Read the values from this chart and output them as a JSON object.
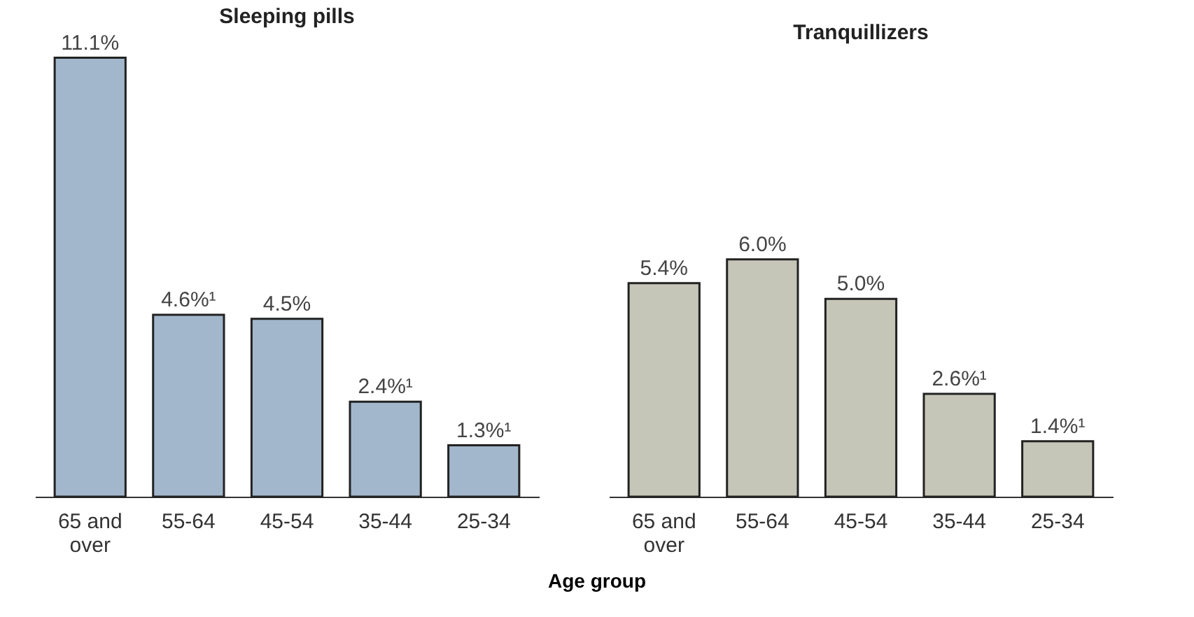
{
  "chart_data": [
    {
      "type": "bar",
      "title": "Sleeping pills",
      "xlabel": "Age group",
      "categories": [
        "65 and over",
        "55-64",
        "45-54",
        "35-44",
        "25-34"
      ],
      "series": [
        {
          "color": "#a3b7cc",
          "values": [
            11.1,
            4.6,
            4.5,
            2.4,
            1.3
          ],
          "value_labels": [
            "11.1%",
            "4.6%¹",
            "4.5%",
            "2.4%¹",
            "1.3%¹"
          ]
        }
      ]
    },
    {
      "type": "bar",
      "title": "Tranquillizers",
      "categories": [
        "65 and over",
        "55-64",
        "45-54",
        "35-44",
        "25-34"
      ],
      "series": [
        {
          "color": "#c6c6b8",
          "values": [
            5.4,
            6.0,
            5.0,
            2.6,
            1.4
          ],
          "value_labels": [
            "5.4%",
            "6.0%",
            "5.0%",
            "2.6%¹",
            "1.4%¹"
          ]
        }
      ]
    }
  ]
}
